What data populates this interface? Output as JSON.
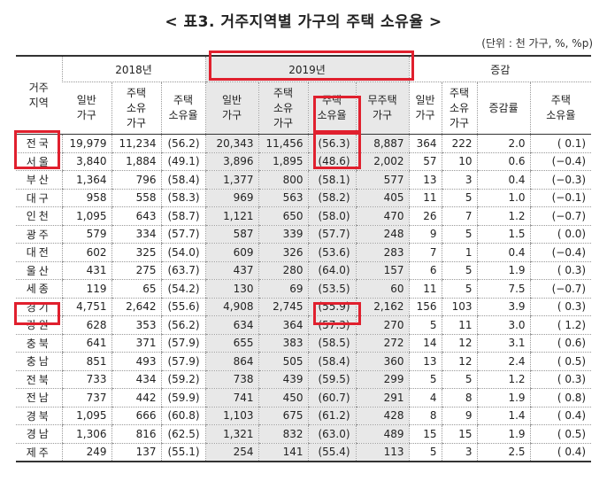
{
  "title": "< 표3. 거주지역별 가구의 주택 소유율 >",
  "unit": "(단위 : 천 가구, %, %p)",
  "headers": {
    "region": "거주\n지역",
    "y2018": "2018년",
    "y2019": "2019년",
    "change": "증감",
    "general": "일반\n가구",
    "owner": "주택\n소유\n가구",
    "rate": "주택\n소유율",
    "nonowner": "무주택\n가구",
    "rate_change": "증감률"
  },
  "rows": [
    {
      "region": "전국",
      "g18": "19,979",
      "o18": "11,234",
      "r18": "(56.2)",
      "g19": "20,343",
      "o19": "11,456",
      "r19": "(56.3)",
      "n19": "8,887",
      "dg": "364",
      "do": "222",
      "dr": "2.0",
      "drate": "(  0.1)"
    },
    {
      "region": "서울",
      "g18": "3,840",
      "o18": "1,884",
      "r18": "(49.1)",
      "g19": "3,896",
      "o19": "1,895",
      "r19": "(48.6)",
      "n19": "2,002",
      "dg": "57",
      "do": "10",
      "dr": "0.6",
      "drate": "(−0.4)"
    },
    {
      "region": "부산",
      "g18": "1,364",
      "o18": "796",
      "r18": "(58.4)",
      "g19": "1,377",
      "o19": "800",
      "r19": "(58.1)",
      "n19": "577",
      "dg": "13",
      "do": "3",
      "dr": "0.4",
      "drate": "(−0.3)"
    },
    {
      "region": "대구",
      "g18": "958",
      "o18": "558",
      "r18": "(58.3)",
      "g19": "969",
      "o19": "563",
      "r19": "(58.2)",
      "n19": "405",
      "dg": "11",
      "do": "5",
      "dr": "1.0",
      "drate": "(−0.1)"
    },
    {
      "region": "인천",
      "g18": "1,095",
      "o18": "643",
      "r18": "(58.7)",
      "g19": "1,121",
      "o19": "650",
      "r19": "(58.0)",
      "n19": "470",
      "dg": "26",
      "do": "7",
      "dr": "1.2",
      "drate": "(−0.7)"
    },
    {
      "region": "광주",
      "g18": "579",
      "o18": "334",
      "r18": "(57.7)",
      "g19": "587",
      "o19": "339",
      "r19": "(57.7)",
      "n19": "248",
      "dg": "9",
      "do": "5",
      "dr": "1.5",
      "drate": "(  0.0)"
    },
    {
      "region": "대전",
      "g18": "602",
      "o18": "325",
      "r18": "(54.0)",
      "g19": "609",
      "o19": "326",
      "r19": "(53.6)",
      "n19": "283",
      "dg": "7",
      "do": "1",
      "dr": "0.4",
      "drate": "(−0.4)"
    },
    {
      "region": "울산",
      "g18": "431",
      "o18": "275",
      "r18": "(63.7)",
      "g19": "437",
      "o19": "280",
      "r19": "(64.0)",
      "n19": "157",
      "dg": "6",
      "do": "5",
      "dr": "1.9",
      "drate": "(  0.3)"
    },
    {
      "region": "세종",
      "g18": "119",
      "o18": "65",
      "r18": "(54.2)",
      "g19": "130",
      "o19": "69",
      "r19": "(53.5)",
      "n19": "60",
      "dg": "11",
      "do": "5",
      "dr": "7.5",
      "drate": "(−0.7)"
    },
    {
      "region": "경기",
      "g18": "4,751",
      "o18": "2,642",
      "r18": "(55.6)",
      "g19": "4,908",
      "o19": "2,745",
      "r19": "(55.9)",
      "n19": "2,162",
      "dg": "156",
      "do": "103",
      "dr": "3.9",
      "drate": "(  0.3)"
    },
    {
      "region": "강원",
      "g18": "628",
      "o18": "353",
      "r18": "(56.2)",
      "g19": "634",
      "o19": "364",
      "r19": "(57.3)",
      "n19": "270",
      "dg": "5",
      "do": "11",
      "dr": "3.0",
      "drate": "(  1.2)"
    },
    {
      "region": "충북",
      "g18": "641",
      "o18": "371",
      "r18": "(57.9)",
      "g19": "655",
      "o19": "383",
      "r19": "(58.5)",
      "n19": "272",
      "dg": "14",
      "do": "12",
      "dr": "3.1",
      "drate": "(  0.6)"
    },
    {
      "region": "충남",
      "g18": "851",
      "o18": "493",
      "r18": "(57.9)",
      "g19": "864",
      "o19": "505",
      "r19": "(58.4)",
      "n19": "360",
      "dg": "13",
      "do": "12",
      "dr": "2.4",
      "drate": "(  0.5)"
    },
    {
      "region": "전북",
      "g18": "733",
      "o18": "434",
      "r18": "(59.2)",
      "g19": "738",
      "o19": "439",
      "r19": "(59.5)",
      "n19": "299",
      "dg": "5",
      "do": "5",
      "dr": "1.2",
      "drate": "(  0.3)"
    },
    {
      "region": "전남",
      "g18": "737",
      "o18": "442",
      "r18": "(59.9)",
      "g19": "741",
      "o19": "450",
      "r19": "(60.7)",
      "n19": "291",
      "dg": "4",
      "do": "8",
      "dr": "1.9",
      "drate": "(  0.8)"
    },
    {
      "region": "경북",
      "g18": "1,095",
      "o18": "666",
      "r18": "(60.8)",
      "g19": "1,103",
      "o19": "675",
      "r19": "(61.2)",
      "n19": "428",
      "dg": "8",
      "do": "9",
      "dr": "1.4",
      "drate": "(  0.4)"
    },
    {
      "region": "경남",
      "g18": "1,306",
      "o18": "816",
      "r18": "(62.5)",
      "g19": "1,321",
      "o19": "832",
      "r19": "(63.0)",
      "n19": "489",
      "dg": "15",
      "do": "15",
      "dr": "1.9",
      "drate": "(  0.5)"
    },
    {
      "region": "제주",
      "g18": "249",
      "o18": "137",
      "r18": "(55.1)",
      "g19": "254",
      "o19": "141",
      "r19": "(55.4)",
      "n19": "113",
      "dg": "5",
      "do": "3",
      "dr": "2.5",
      "drate": "(  0.4)"
    }
  ]
}
